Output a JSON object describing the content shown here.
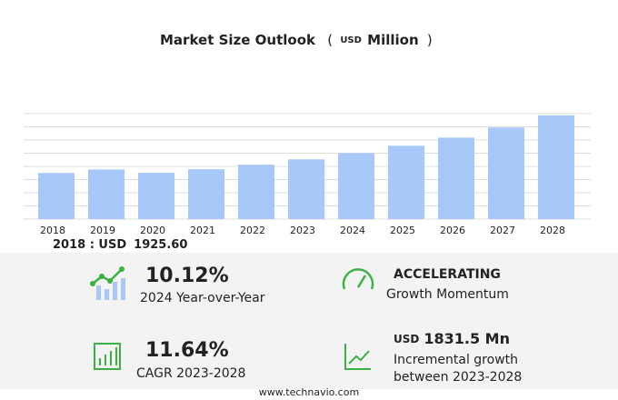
{
  "chart_data": {
    "type": "bar",
    "title": "Market Size Outlook",
    "title_units": [
      "(",
      "USD",
      "Million",
      ")"
    ],
    "categories": [
      "2018",
      "2019",
      "2020",
      "2021",
      "2022",
      "2023",
      "2024",
      "2025",
      "2026",
      "2027",
      "2028"
    ],
    "values": [
      1925.6,
      2070,
      1930,
      2080,
      2270,
      2494,
      2747,
      3060,
      3400,
      3820,
      4326
    ],
    "color": "#a8c8fa",
    "ylim": [
      0,
      4400
    ],
    "yticks": [
      0,
      550,
      1100,
      1650,
      2200,
      2750,
      3300,
      3850,
      4400
    ],
    "grid": true
  },
  "highlights": {
    "base": {
      "label": "2018 : USD",
      "value": "1925.60"
    },
    "yoy": {
      "value": "10.12%",
      "label": "2024 Year-over-Year"
    },
    "momentum": {
      "value": "ACCELERATING",
      "label": "Growth Momentum"
    },
    "cagr": {
      "value": "11.64%",
      "label": "CAGR 2023-2028"
    },
    "incremental": {
      "unit": "USD",
      "value": "1831.5 Mn",
      "label": [
        "Incremental growth",
        "between 2023-2028"
      ]
    }
  },
  "footer": "www.technavio.com"
}
